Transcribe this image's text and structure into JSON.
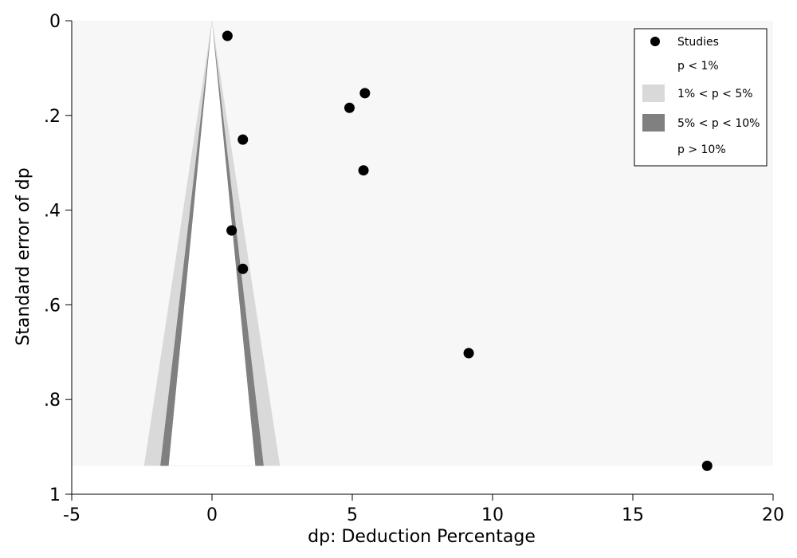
{
  "chart_data": {
    "type": "scatter",
    "title": "",
    "xlabel": "dp: Deduction Percentage",
    "ylabel": "Standard error of dp",
    "xlim": [
      -5,
      20
    ],
    "ylim": [
      0,
      1
    ],
    "y_inverted": true,
    "x_ticks": [
      -5,
      0,
      5,
      10,
      15,
      20
    ],
    "x_tick_labels": [
      "-5",
      "0",
      "5",
      "10",
      "15",
      "20"
    ],
    "y_ticks": [
      0,
      0.2,
      0.4,
      0.6,
      0.8,
      1
    ],
    "y_tick_labels": [
      "0",
      ".2",
      ".4",
      ".6",
      ".8",
      "1"
    ],
    "grid": false,
    "legend_position": "top-right",
    "legend": [
      {
        "label": "Studies",
        "kind": "marker",
        "color": "#000000"
      },
      {
        "label": "p < 1%",
        "kind": "area",
        "color": "#ffffff"
      },
      {
        "label": "1% < p < 5%",
        "kind": "area",
        "color": "#d9d9d9"
      },
      {
        "label": "5% < p < 10%",
        "kind": "area",
        "color": "#808080"
      },
      {
        "label": "p > 10%",
        "kind": "area",
        "color": "#ffffff"
      }
    ],
    "contour_center": 0,
    "contour_max_se": 0.94,
    "contour_z": [
      1.645,
      1.96,
      2.576
    ],
    "contour_colors": {
      "p_lt_1": "#f7f7f7",
      "p_1_5": "#d9d9d9",
      "p_5_10": "#808080",
      "p_gt_10": "#ffffff"
    },
    "series": [
      {
        "name": "Studies",
        "color": "#000000",
        "points": [
          {
            "x": 0.55,
            "y": 0.032
          },
          {
            "x": 5.45,
            "y": 0.153
          },
          {
            "x": 4.9,
            "y": 0.184
          },
          {
            "x": 1.1,
            "y": 0.251
          },
          {
            "x": 5.4,
            "y": 0.316
          },
          {
            "x": 0.7,
            "y": 0.443
          },
          {
            "x": 1.1,
            "y": 0.524
          },
          {
            "x": 9.15,
            "y": 0.702
          },
          {
            "x": 17.65,
            "y": 0.94
          }
        ]
      }
    ]
  }
}
